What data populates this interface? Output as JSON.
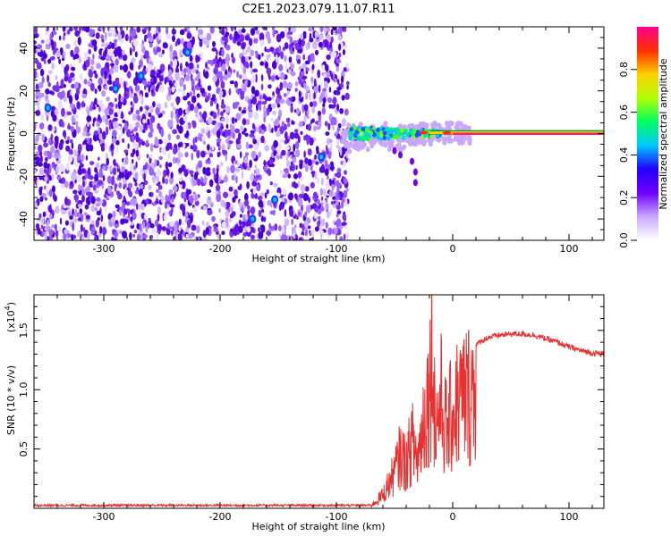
{
  "title": "C2E1.2023.079.11.07.R11",
  "chart_data": [
    {
      "type": "heatmap",
      "xlabel": "Height of straight line (km)",
      "ylabel": "Frequency (Hz)",
      "xlim": [
        -360,
        130
      ],
      "ylim": [
        -50,
        50
      ],
      "xticks": [
        -300,
        -200,
        -100,
        0,
        100
      ],
      "yticks": [
        -40,
        -20,
        0,
        20,
        40
      ],
      "noise_region_km": [
        -360,
        -90
      ],
      "signal_band_hz": [
        -1,
        1
      ],
      "colorbar": {
        "label": "Normalized spectral amplitude",
        "range": [
          0.0,
          1.0
        ],
        "ticks": [
          0.0,
          0.2,
          0.4,
          0.6,
          0.8
        ],
        "colors": [
          "#ffffff",
          "#c8a8ff",
          "#7000ff",
          "#2000ff",
          "#00c8ff",
          "#00ff60",
          "#b0ff00",
          "#ffd000",
          "#ff3000",
          "#ff0090"
        ]
      }
    },
    {
      "type": "line",
      "xlabel": "Height of straight line (km)",
      "ylabel": "SNR (10 * v/v)",
      "yscale_label": "(x10",
      "yscale_exp": "4",
      "xlim": [
        -360,
        130
      ],
      "ylim": [
        0,
        1.8
      ],
      "xticks": [
        -300,
        -200,
        -100,
        0,
        100
      ],
      "yticks": [
        0.5,
        1.0,
        1.5
      ],
      "color": "#e83030",
      "series": [
        {
          "name": "SNR",
          "x": [
            -360,
            -300,
            -200,
            -100,
            -70,
            -60,
            -50,
            -45,
            -40,
            -35,
            -30,
            -25,
            -20,
            -17,
            -15,
            -10,
            -5,
            0,
            5,
            10,
            15,
            20,
            30,
            40,
            50,
            60,
            70,
            80,
            90,
            100,
            110,
            120,
            130
          ],
          "y": [
            0.02,
            0.02,
            0.02,
            0.02,
            0.03,
            0.15,
            0.4,
            0.6,
            0.5,
            0.75,
            0.55,
            1.0,
            1.35,
            1.8,
            0.9,
            1.2,
            0.85,
            1.1,
            1.2,
            1.25,
            1.3,
            1.38,
            1.44,
            1.46,
            1.47,
            1.47,
            1.46,
            1.43,
            1.4,
            1.36,
            1.33,
            1.31,
            1.3
          ]
        }
      ]
    }
  ]
}
